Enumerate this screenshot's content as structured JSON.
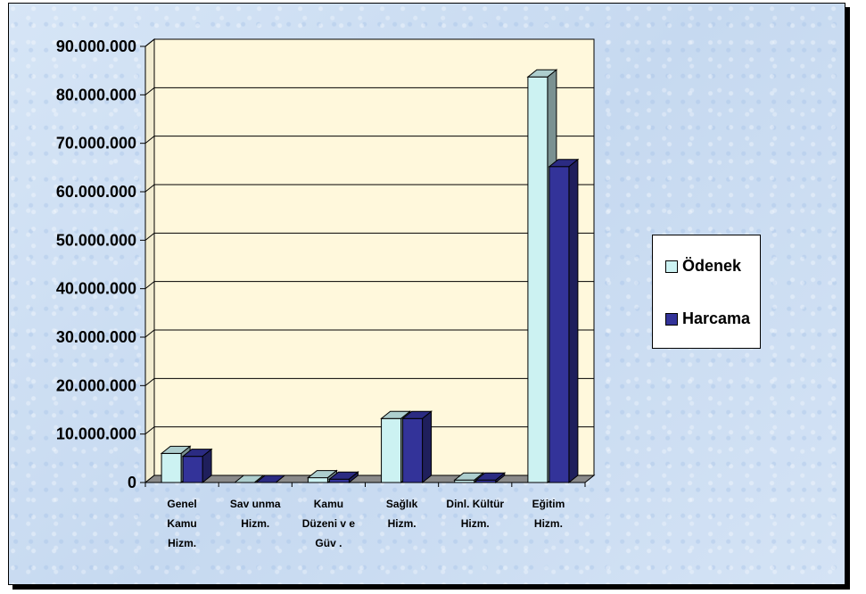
{
  "chart_data": {
    "type": "bar",
    "categories": [
      [
        "Genel",
        "Kamu",
        "Hizm."
      ],
      [
        "Sav unma",
        "Hizm."
      ],
      [
        "Kamu",
        "Düzeni v e",
        "Güv ."
      ],
      [
        "Sağlık",
        "Hizm."
      ],
      [
        "Dinl. Kültür",
        "Hizm."
      ],
      [
        "Eğitim",
        "Hizm."
      ]
    ],
    "series": [
      {
        "name": "Ödenek",
        "color": "#ccf2f2",
        "values": [
          6000000,
          0,
          1000000,
          13200000,
          500000,
          83700000
        ]
      },
      {
        "name": "Harcama",
        "color": "#333399",
        "values": [
          5400000,
          0,
          700000,
          13200000,
          500000,
          65200000
        ]
      }
    ],
    "ylim": [
      0,
      90000000
    ],
    "yticks": [
      "0",
      "10.000.000",
      "20.000.000",
      "30.000.000",
      "40.000.000",
      "50.000.000",
      "60.000.000",
      "70.000.000",
      "80.000.000",
      "90.000.000"
    ],
    "plot_background": "#fff8dc",
    "grid": true,
    "legend_position": "right"
  }
}
